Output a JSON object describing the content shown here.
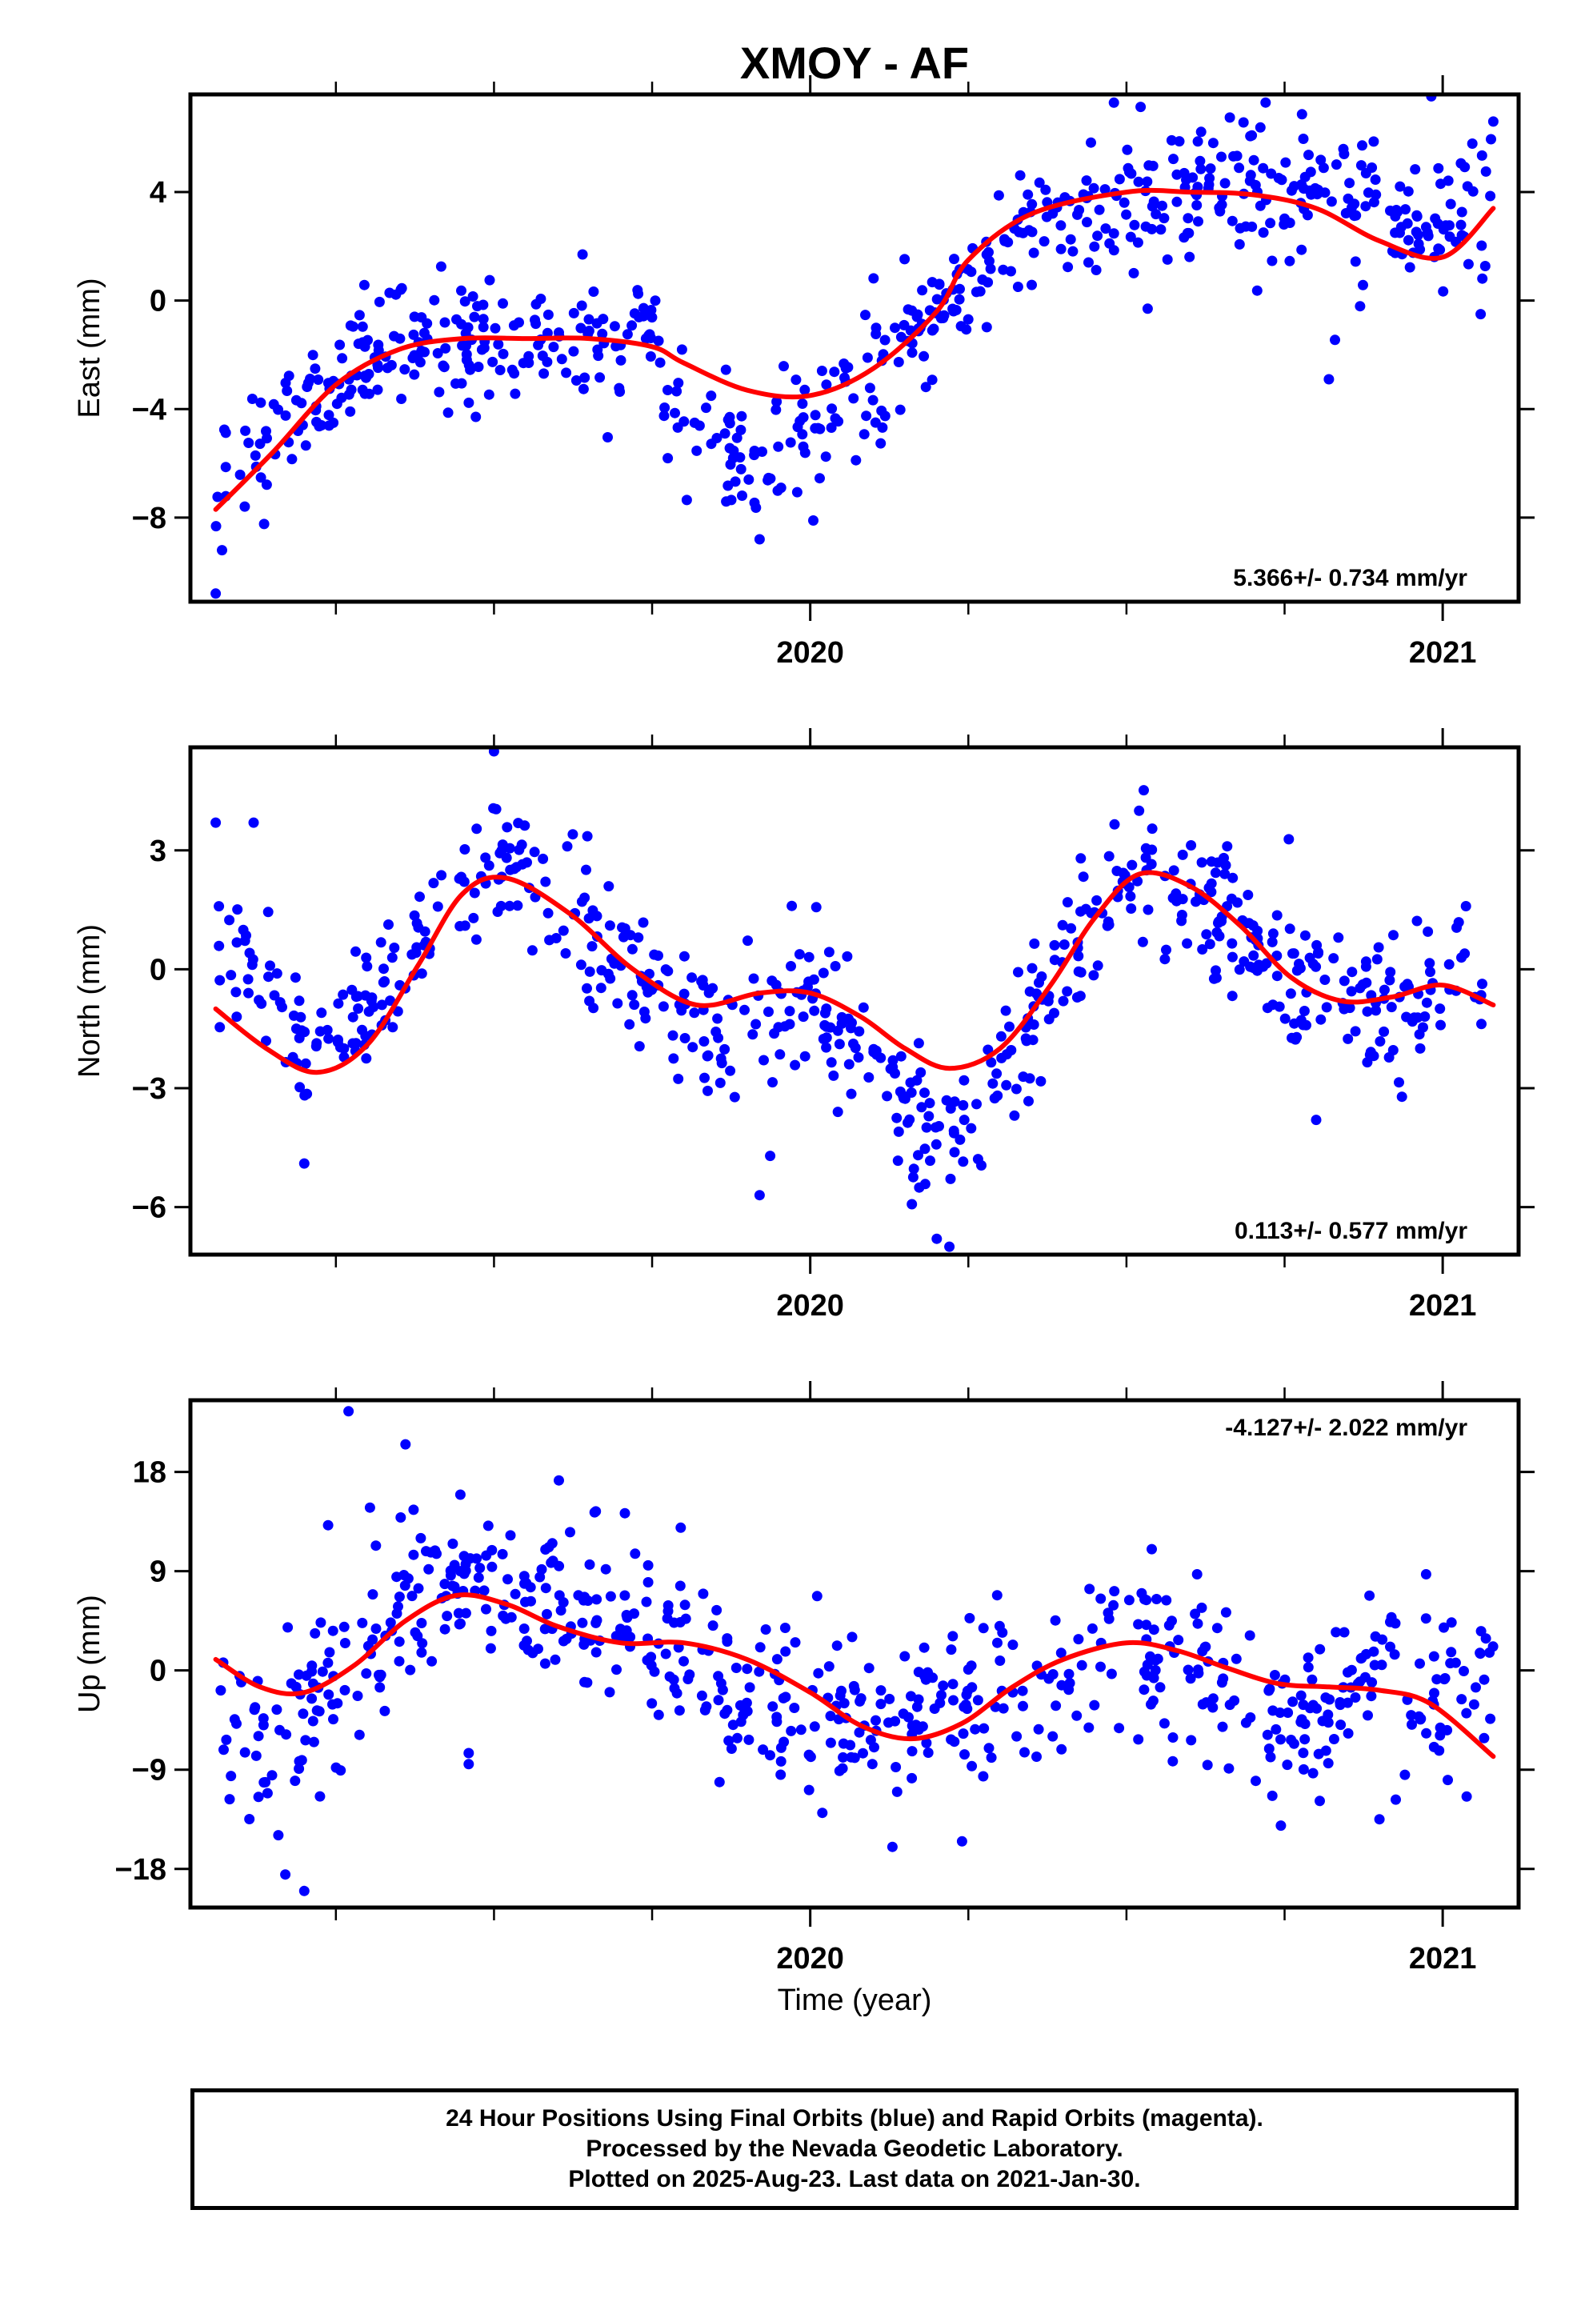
{
  "chart_data": {
    "type": "scatter",
    "title": "XMOY - AF",
    "xlabel": "Time (year)",
    "x_range": [
      2019.02,
      2021.12
    ],
    "x_major_ticks": [
      2020,
      2021
    ],
    "x_tick_labels": [
      "2020",
      "2021"
    ],
    "x_minor_ticks": [
      2019.25,
      2019.5,
      2019.75,
      2020.25,
      2020.5,
      2020.75
    ],
    "series_colors": {
      "final_orbits": "#0000ff",
      "rapid_orbits": "#ff00ff",
      "fit": "#ff0000"
    },
    "panels": [
      {
        "name": "east",
        "ylabel": "East (mm)",
        "ylim": [
          -11.1,
          7.6
        ],
        "yticks": [
          -8,
          -4,
          0,
          4
        ],
        "ytick_labels": [
          "−8",
          "−4",
          "0",
          "4"
        ],
        "rate_label": "5.366+/- 0.734 mm/yr",
        "rate_position": "bottom-right",
        "fit_x": [
          2019.06,
          2019.15,
          2019.25,
          2019.35,
          2019.45,
          2019.55,
          2019.65,
          2019.75,
          2019.8,
          2019.9,
          2020.0,
          2020.1,
          2020.2,
          2020.25,
          2020.35,
          2020.5,
          2020.6,
          2020.7,
          2020.8,
          2020.9,
          2021.0,
          2021.08
        ],
        "fit_y": [
          -7.7,
          -5.6,
          -3.1,
          -1.8,
          -1.4,
          -1.4,
          -1.4,
          -1.7,
          -2.3,
          -3.3,
          -3.5,
          -2.5,
          -0.4,
          1.5,
          3.2,
          4.0,
          4.0,
          3.9,
          3.4,
          2.2,
          1.6,
          3.4
        ],
        "centers": [
          [
            2019.06,
            -7.7
          ],
          [
            2019.15,
            -5.6
          ],
          [
            2019.25,
            -3.1
          ],
          [
            2019.35,
            -1.8
          ],
          [
            2019.45,
            -1.4
          ],
          [
            2019.55,
            -1.4
          ],
          [
            2019.65,
            -1.4
          ],
          [
            2019.75,
            -1.5
          ],
          [
            2019.8,
            -4.9
          ],
          [
            2019.9,
            -5.4
          ],
          [
            2020.0,
            -4.6
          ],
          [
            2020.1,
            -3.0
          ],
          [
            2020.2,
            -0.4
          ],
          [
            2020.25,
            0.5
          ],
          [
            2020.35,
            2.8
          ],
          [
            2020.5,
            3.8
          ],
          [
            2020.6,
            3.4
          ],
          [
            2020.7,
            4.2
          ],
          [
            2020.8,
            3.8
          ],
          [
            2020.9,
            2.9
          ],
          [
            2021.0,
            3.1
          ],
          [
            2021.08,
            4.1
          ]
        ],
        "scatter_sd": 1.3,
        "outliers": [
          [
            2019.06,
            -10.8
          ],
          [
            2019.07,
            -9.2
          ],
          [
            2019.64,
            1.7
          ],
          [
            2019.92,
            -8.8
          ],
          [
            2020.65,
            5.3
          ],
          [
            2020.82,
            -2.9
          ],
          [
            2021.06,
            -0.5
          ],
          [
            2021.08,
            6.6
          ],
          [
            2020.72,
            7.3
          ]
        ]
      },
      {
        "name": "north",
        "ylabel": "North (mm)",
        "ylim": [
          -7.2,
          5.6
        ],
        "yticks": [
          -6,
          -3,
          0,
          3
        ],
        "ytick_labels": [
          "−6",
          "−3",
          "0",
          "3"
        ],
        "rate_label": "0.113+/- 0.577 mm/yr",
        "rate_position": "bottom-right",
        "fit_x": [
          2019.06,
          2019.14,
          2019.22,
          2019.3,
          2019.38,
          2019.45,
          2019.52,
          2019.62,
          2019.72,
          2019.82,
          2019.92,
          2020.0,
          2020.08,
          2020.15,
          2020.22,
          2020.3,
          2020.38,
          2020.45,
          2020.52,
          2020.6,
          2020.68,
          2020.76,
          2020.84,
          2020.92,
          2021.0,
          2021.08
        ],
        "fit_y": [
          -1.0,
          -2.0,
          -2.6,
          -1.9,
          0.1,
          1.9,
          2.3,
          1.4,
          0.0,
          -0.9,
          -0.6,
          -0.6,
          -1.2,
          -2.0,
          -2.5,
          -2.0,
          -0.4,
          1.3,
          2.4,
          2.1,
          1.1,
          -0.2,
          -0.8,
          -0.7,
          -0.4,
          -0.9
        ],
        "centers": [
          [
            2019.06,
            0.5
          ],
          [
            2019.14,
            -0.5
          ],
          [
            2019.22,
            -2.2
          ],
          [
            2019.3,
            -1.2
          ],
          [
            2019.38,
            0.6
          ],
          [
            2019.45,
            2.2
          ],
          [
            2019.52,
            2.4
          ],
          [
            2019.62,
            1.3
          ],
          [
            2019.72,
            0.0
          ],
          [
            2019.82,
            -1.5
          ],
          [
            2019.92,
            -1.6
          ],
          [
            2020.0,
            -0.4
          ],
          [
            2020.08,
            -1.8
          ],
          [
            2020.15,
            -3.9
          ],
          [
            2020.22,
            -4.3
          ],
          [
            2020.3,
            -2.8
          ],
          [
            2020.38,
            -0.2
          ],
          [
            2020.45,
            1.7
          ],
          [
            2020.52,
            2.7
          ],
          [
            2020.6,
            1.6
          ],
          [
            2020.68,
            0.8
          ],
          [
            2020.76,
            -0.3
          ],
          [
            2020.84,
            -0.6
          ],
          [
            2020.92,
            -1.2
          ],
          [
            2021.0,
            0.0
          ],
          [
            2021.08,
            -0.5
          ]
        ],
        "scatter_sd": 0.95,
        "outliers": [
          [
            2019.5,
            5.5
          ],
          [
            2019.06,
            3.7
          ],
          [
            2019.12,
            3.7
          ],
          [
            2019.2,
            -4.9
          ],
          [
            2019.92,
            -5.7
          ],
          [
            2020.2,
            -6.8
          ],
          [
            2020.22,
            -7.0
          ],
          [
            2020.52,
            4.0
          ],
          [
            2020.8,
            -3.8
          ]
        ]
      },
      {
        "name": "up",
        "ylabel": "Up (mm)",
        "ylim": [
          -21.5,
          24.5
        ],
        "yticks": [
          -18,
          -9,
          0,
          9,
          18
        ],
        "ytick_labels": [
          "−18",
          "−9",
          "0",
          "9",
          "18"
        ],
        "rate_label": "-4.127+/- 2.022 mm/yr",
        "rate_position": "top-right",
        "fit_x": [
          2019.06,
          2019.13,
          2019.2,
          2019.28,
          2019.36,
          2019.44,
          2019.52,
          2019.6,
          2019.7,
          2019.8,
          2019.9,
          2020.0,
          2020.08,
          2020.16,
          2020.24,
          2020.32,
          2020.4,
          2020.5,
          2020.58,
          2020.66,
          2020.74,
          2020.82,
          2020.9,
          2020.98,
          2021.08
        ],
        "fit_y": [
          1.0,
          -1.5,
          -2.0,
          0.5,
          4.5,
          6.8,
          6.0,
          4.0,
          2.5,
          2.5,
          1.0,
          -2.0,
          -5.0,
          -6.2,
          -4.8,
          -1.5,
          1.0,
          2.5,
          1.8,
          0.2,
          -1.2,
          -1.5,
          -1.8,
          -3.0,
          -7.8
        ],
        "centers": [
          [
            2019.06,
            -5.0
          ],
          [
            2019.13,
            -7.0
          ],
          [
            2019.2,
            -4.0
          ],
          [
            2019.28,
            1.5
          ],
          [
            2019.36,
            6.5
          ],
          [
            2019.44,
            8.5
          ],
          [
            2019.52,
            7.0
          ],
          [
            2019.6,
            6.5
          ],
          [
            2019.7,
            5.0
          ],
          [
            2019.8,
            2.0
          ],
          [
            2019.9,
            -1.5
          ],
          [
            2020.0,
            -3.0
          ],
          [
            2020.08,
            -6.0
          ],
          [
            2020.16,
            -5.0
          ],
          [
            2020.24,
            -3.5
          ],
          [
            2020.32,
            -0.5
          ],
          [
            2020.4,
            1.0
          ],
          [
            2020.5,
            3.5
          ],
          [
            2020.58,
            0.5
          ],
          [
            2020.66,
            -1.0
          ],
          [
            2020.74,
            -5.0
          ],
          [
            2020.82,
            -4.0
          ],
          [
            2020.9,
            -0.5
          ],
          [
            2020.98,
            -2.5
          ],
          [
            2021.08,
            -2.0
          ]
        ],
        "scatter_sd": 3.9,
        "outliers": [
          [
            2019.27,
            23.5
          ],
          [
            2019.36,
            20.5
          ],
          [
            2019.2,
            -20.0
          ],
          [
            2019.17,
            -18.5
          ],
          [
            2019.46,
            -7.5
          ],
          [
            2019.46,
            -8.5
          ],
          [
            2020.13,
            -16.0
          ],
          [
            2020.24,
            -15.5
          ],
          [
            2020.54,
            11.0
          ],
          [
            2020.9,
            -13.5
          ]
        ]
      }
    ],
    "point_counts": [
      640,
      640,
      640
    ]
  },
  "notes": [
    "24 Hour Positions Using Final Orbits (blue) and Rapid Orbits (magenta).",
    "Processed by the Nevada Geodetic Laboratory.",
    "Plotted on 2025-Aug-23. Last data on 2021-Jan-30."
  ]
}
